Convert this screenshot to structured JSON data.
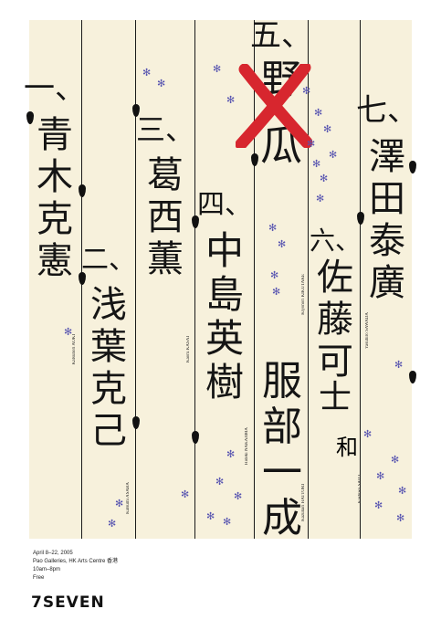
{
  "columns": [
    {
      "id": "c1",
      "numeral": "一、",
      "chars": [
        "青",
        "木",
        "克",
        "憲"
      ],
      "roman": "Katsunori AOKI"
    },
    {
      "id": "c2",
      "numeral": "二、",
      "chars": [
        "浅",
        "葉",
        "克",
        "己"
      ],
      "roman": "Katsumi ASABA"
    },
    {
      "id": "c3",
      "numeral": "三、",
      "chars": [
        "葛",
        "西",
        "薫"
      ],
      "roman": "Kaoru KASAI"
    },
    {
      "id": "c4",
      "numeral": "四、",
      "chars": [
        "中",
        "島",
        "英",
        "樹"
      ],
      "roman": "Hideki NAKAJIMA"
    },
    {
      "id": "c5",
      "numeral": "五、",
      "chars": [
        "野",
        "瓜"
      ],
      "roman": "Kiyonori KIKUTAKE"
    },
    {
      "id": "c6",
      "numeral": "",
      "chars": [
        "服",
        "部",
        "一",
        "成"
      ],
      "roman": "Kazunari HATTORI"
    },
    {
      "id": "c7",
      "numeral": "六、",
      "chars": [
        "佐",
        "藤",
        "可",
        "士",
        "和"
      ],
      "roman": "Kashiwa SATO"
    },
    {
      "id": "c8",
      "numeral": "七、",
      "chars": [
        "澤",
        "田",
        "泰",
        "廣"
      ],
      "roman": "Yasuhiro SAWADA"
    }
  ],
  "event": {
    "dates": "April 8–22, 2005",
    "venue": "Pao Galleries, HK Arts Centre 香港",
    "hours": "10am–8pm",
    "admission": "Free"
  },
  "logo": "7SEVEN",
  "colors": {
    "paper": "#f7f1dc",
    "ink": "#151515",
    "accent": "#d7262e",
    "flower": "#5754b0"
  }
}
